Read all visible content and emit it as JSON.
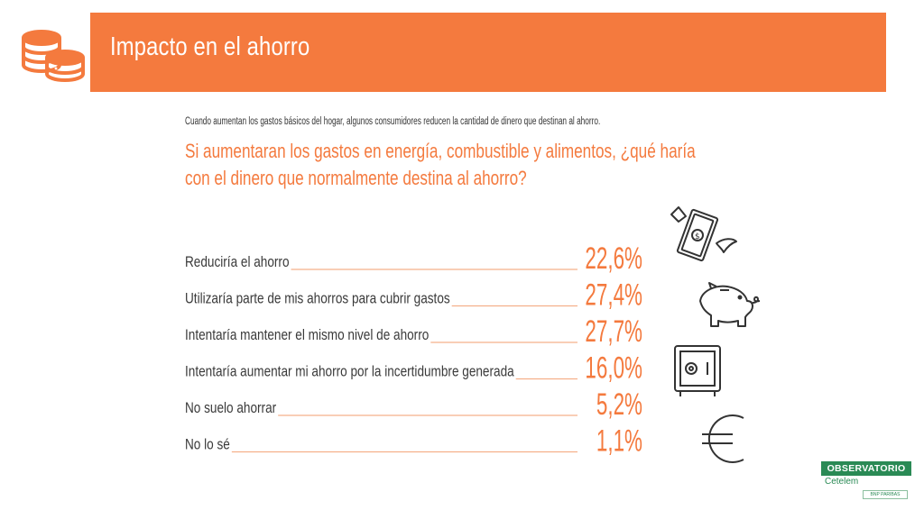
{
  "header": {
    "title": "Impacto en el ahorro",
    "accent_color": "#f47a3e"
  },
  "intro_text": "Cuando aumentan los gastos básicos del hogar, algunos consumidores reducen la cantidad de dinero que destinan al ahorro.",
  "question_text": "Si aumentaran los gastos en energía, combustible y alimentos, ¿qué haría con el dinero que normalmente destina al ahorro?",
  "chart_data": {
    "type": "bar",
    "categories": [
      "Reduciría el ahorro",
      "Utilizaría parte de mis ahorros para cubrir gastos",
      "Intentaría mantener el mismo nivel de ahorro",
      "Intentaría aumentar mi ahorro por la incertidumbre generada",
      "No suelo ahorrar",
      "No lo sé"
    ],
    "values": [
      22.6,
      27.4,
      27.7,
      16.0,
      5.2,
      1.1
    ],
    "value_labels": [
      "22,6%",
      "27,4%",
      "27,7%",
      "16,0%",
      "5,2%",
      "1,1%"
    ],
    "unit": "%"
  },
  "icons": [
    "coins-icon",
    "flying-money-icon",
    "piggy-bank-icon",
    "safe-icon",
    "euro-icon"
  ],
  "logo": {
    "name": "OBSERVATORIO",
    "sub": "Cetelem",
    "foot": "BNP PARIBAS PERSONAL FINANCE"
  }
}
